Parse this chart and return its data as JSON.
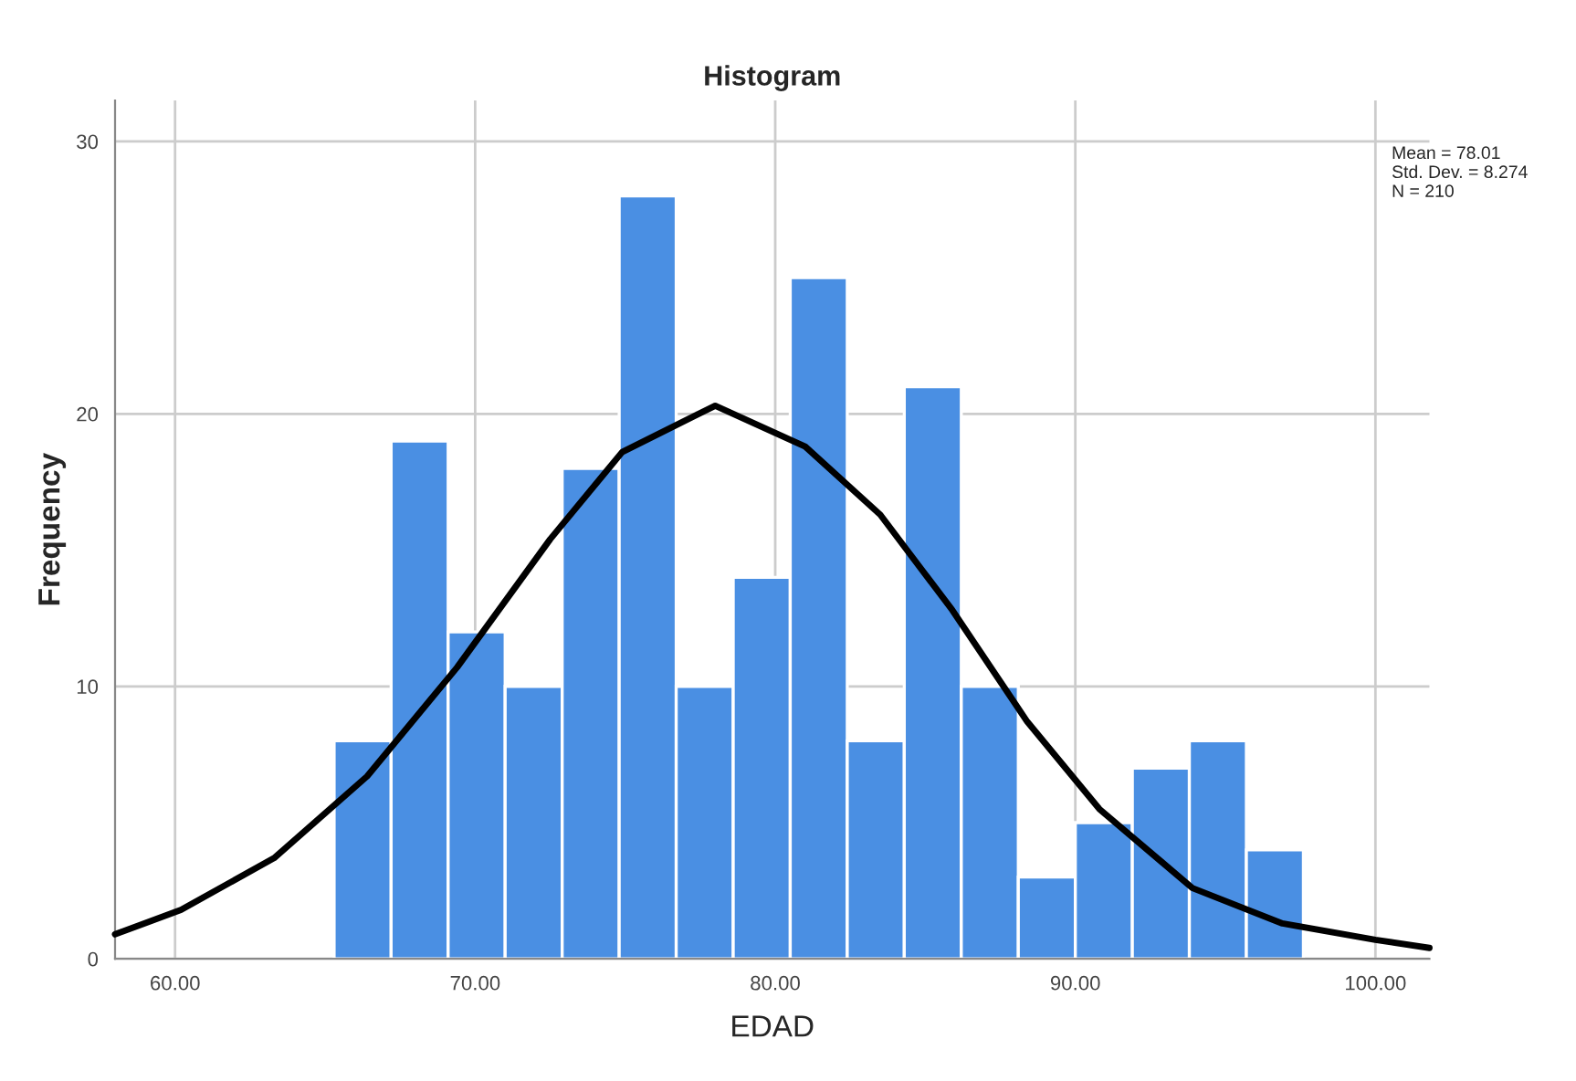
{
  "chart_data": {
    "type": "histogram",
    "title": "Histogram",
    "xlabel": "EDAD",
    "ylabel": "Frequency",
    "bins": [
      65.3,
      67.2,
      69.1,
      71.0,
      72.9,
      74.8,
      76.7,
      78.6,
      80.5,
      82.4,
      84.3,
      86.2,
      88.1,
      90.0,
      91.9,
      93.8,
      95.7,
      97.6
    ],
    "values": [
      8,
      19,
      12,
      10,
      18,
      28,
      10,
      14,
      25,
      8,
      21,
      10,
      3,
      5,
      7,
      8,
      4
    ],
    "color": "#4a8fe3",
    "series": [
      {
        "type": "line",
        "color": "#000000",
        "x": [
          58.0,
          60.2,
          63.3,
          66.4,
          69.4,
          72.5,
          74.9,
          78.0,
          81.0,
          83.5,
          85.9,
          88.4,
          90.8,
          93.9,
          96.9,
          100.0,
          101.8
        ],
        "values": [
          0.9,
          1.8,
          3.7,
          6.7,
          10.7,
          15.4,
          18.6,
          20.3,
          18.8,
          16.3,
          12.8,
          8.7,
          5.5,
          2.6,
          1.3,
          0.7,
          0.4
        ]
      }
    ],
    "xlim": [
      58.0,
      101.8
    ],
    "ylim": [
      0,
      31.5
    ],
    "xticks": [
      {
        "value": 60,
        "label": "60.00"
      },
      {
        "value": 70,
        "label": "70.00"
      },
      {
        "value": 80,
        "label": "80.00"
      },
      {
        "value": 90,
        "label": "90.00"
      },
      {
        "value": 100,
        "label": "100.00"
      }
    ],
    "yticks": [
      0,
      10,
      20,
      30
    ],
    "grid": true,
    "annotations": [
      "Mean = 78.01\nStd. Dev. = 8.274\nN = 210"
    ]
  }
}
